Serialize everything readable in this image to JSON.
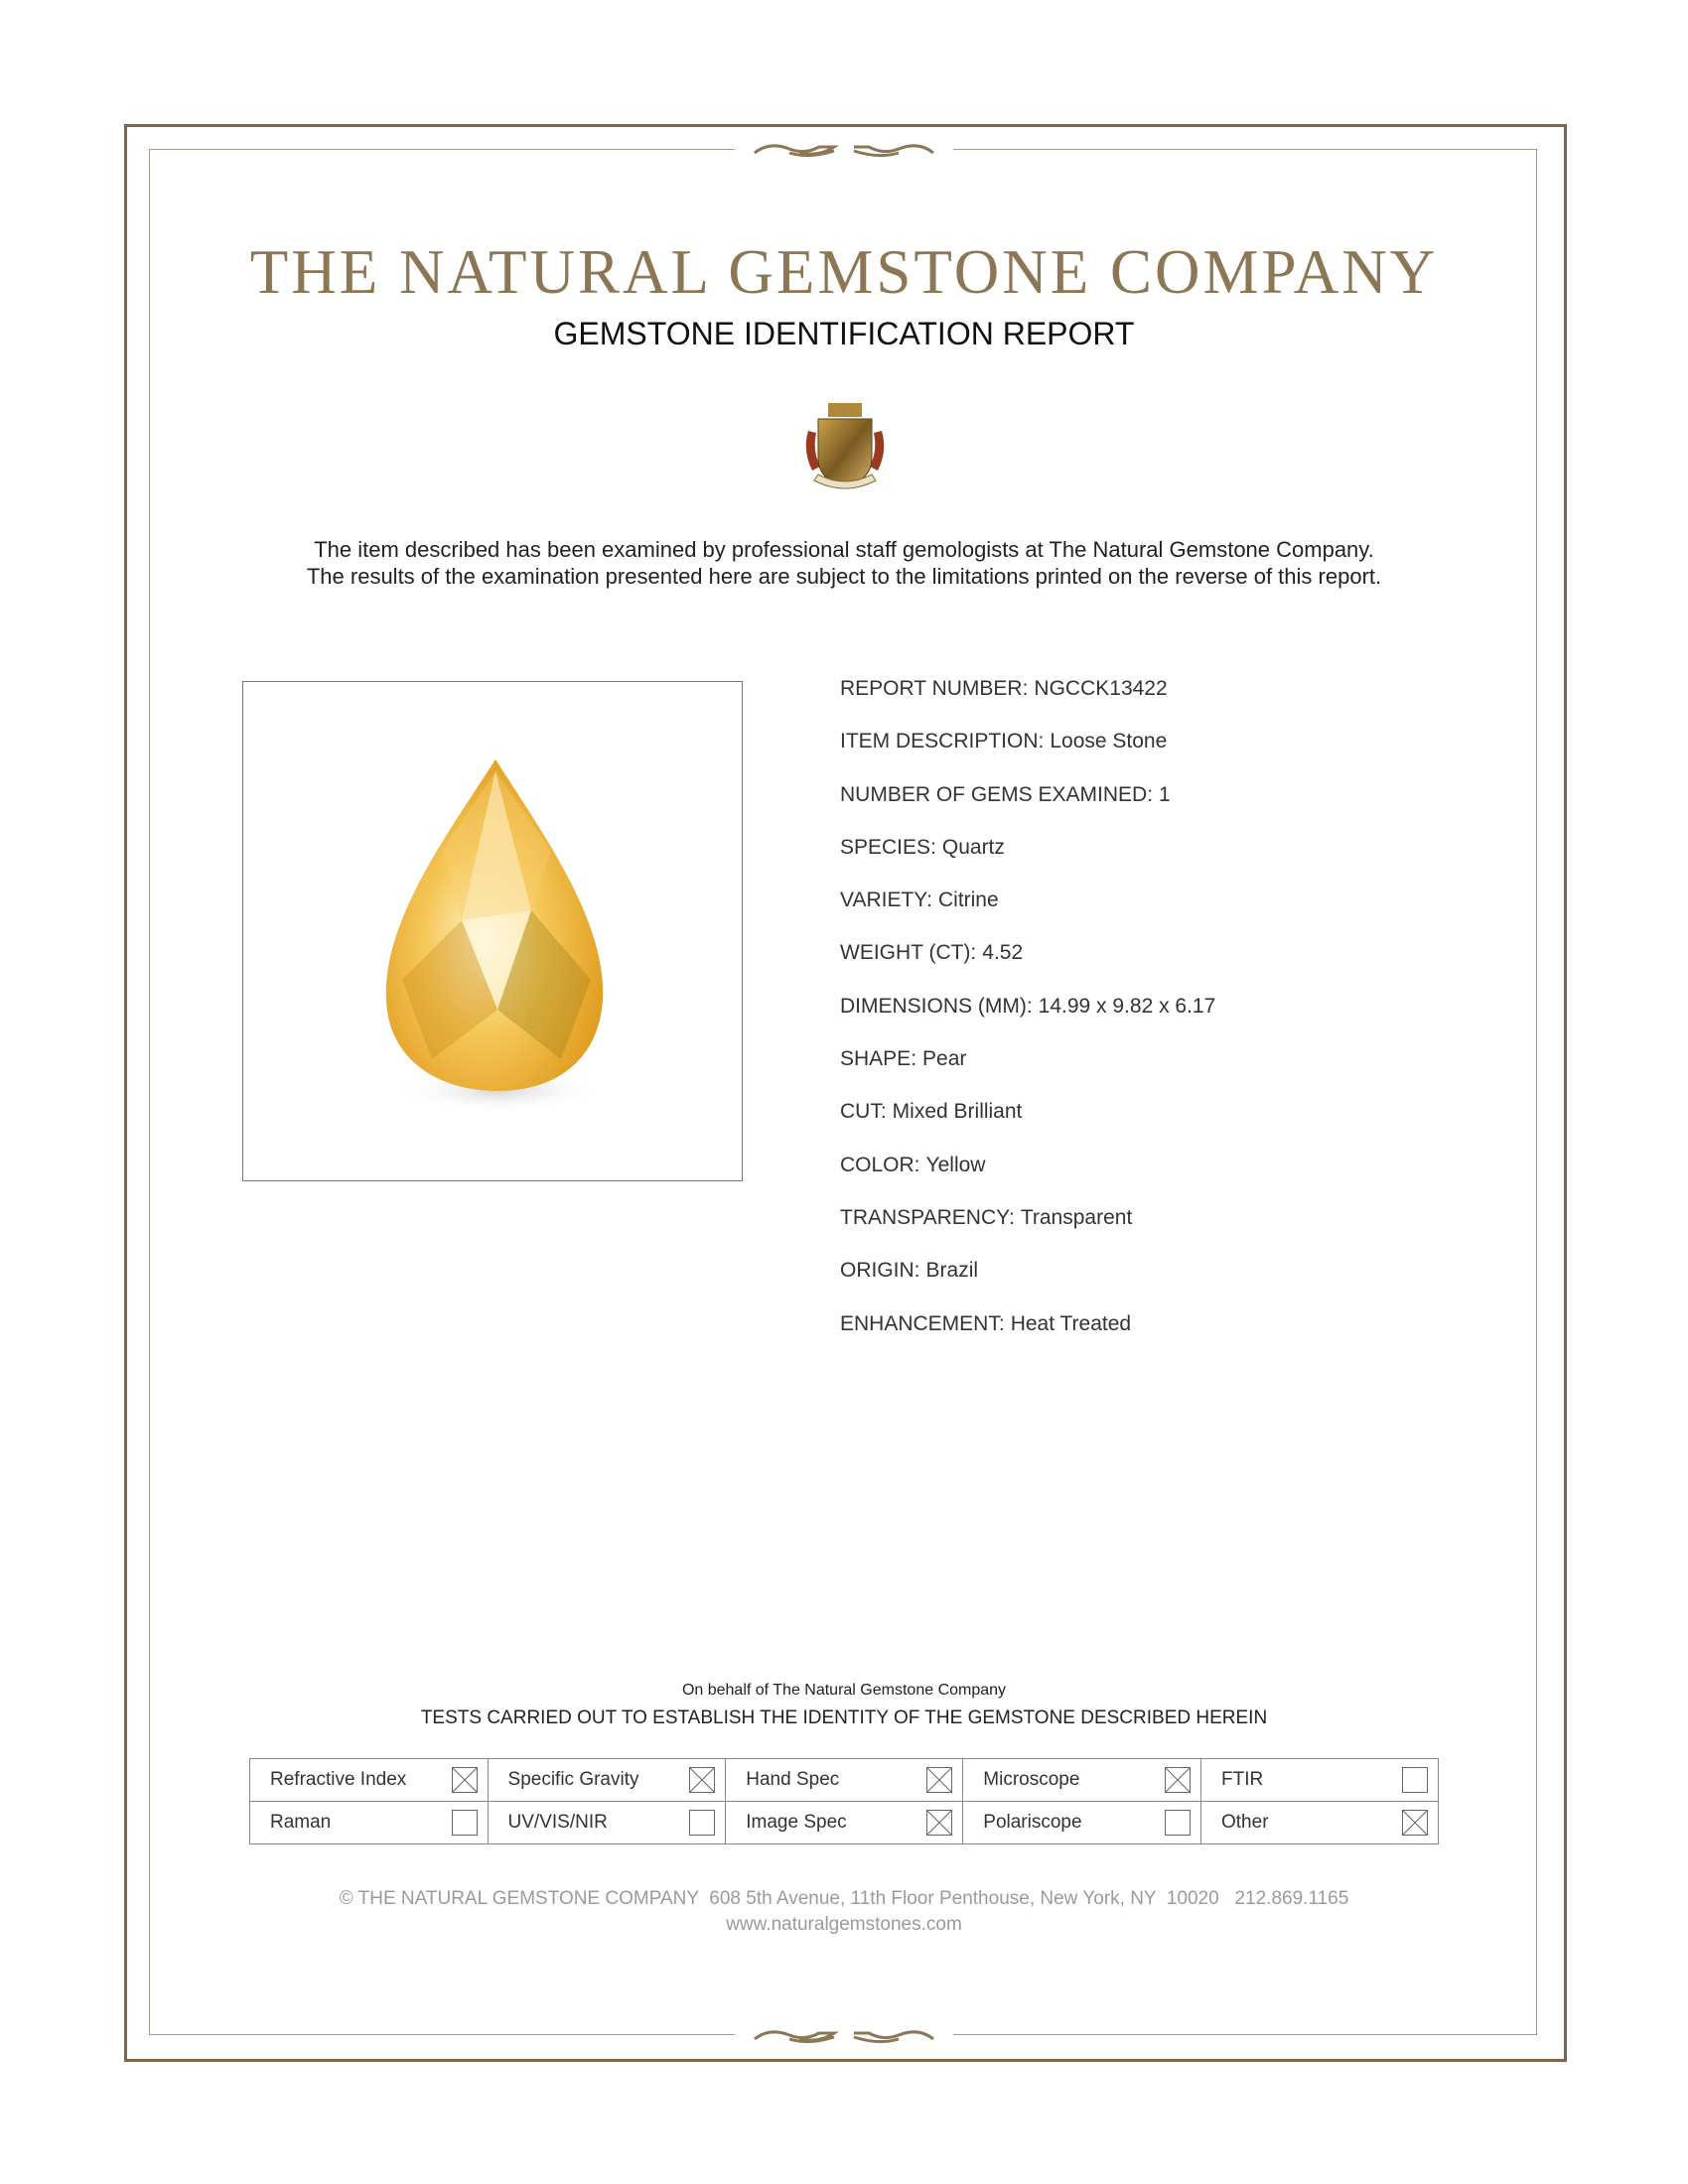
{
  "header": {
    "company": "THE NATURAL GEMSTONE COMPANY",
    "report_title": "GEMSTONE IDENTIFICATION REPORT",
    "crest_icon": "crest-logo"
  },
  "intro": {
    "line1": "The item described has been examined by professional staff gemologists at The Natural Gemstone Company.",
    "line2": "The results of the examination presented here are subject to the limitations printed on the reverse of this report."
  },
  "fields": [
    {
      "label": "REPORT NUMBER:",
      "value": "NGCCK13422"
    },
    {
      "label": "ITEM DESCRIPTION:",
      "value": "Loose Stone"
    },
    {
      "label": "NUMBER OF GEMS EXAMINED:",
      "value": "1"
    },
    {
      "label": "SPECIES:",
      "value": "Quartz"
    },
    {
      "label": "VARIETY:",
      "value": "Citrine"
    },
    {
      "label": "WEIGHT (CT):",
      "value": "4.52"
    },
    {
      "label": "DIMENSIONS (MM):",
      "value": "14.99 x 9.82 x 6.17"
    },
    {
      "label": "SHAPE:",
      "value": "Pear"
    },
    {
      "label": "CUT:",
      "value": "Mixed Brilliant"
    },
    {
      "label": "COLOR:",
      "value": "Yellow"
    },
    {
      "label": "TRANSPARENCY:",
      "value": "Transparent"
    },
    {
      "label": "ORIGIN:",
      "value": "Brazil"
    },
    {
      "label": "ENHANCEMENT:",
      "value": "Heat Treated"
    }
  ],
  "tests": {
    "on_behalf": "On behalf of The Natural Gemstone Company",
    "heading": "TESTS CARRIED OUT TO ESTABLISH THE IDENTITY OF THE GEMSTONE DESCRIBED HEREIN",
    "rows": [
      [
        {
          "label": "Refractive Index",
          "checked": true
        },
        {
          "label": "Specific Gravity",
          "checked": true
        },
        {
          "label": "Hand Spec",
          "checked": true
        },
        {
          "label": "Microscope",
          "checked": true
        },
        {
          "label": "FTIR",
          "checked": false
        }
      ],
      [
        {
          "label": "Raman",
          "checked": false
        },
        {
          "label": "UV/VIS/NIR",
          "checked": false
        },
        {
          "label": "Image Spec",
          "checked": true
        },
        {
          "label": "Polariscope",
          "checked": false
        },
        {
          "label": "Other",
          "checked": true
        }
      ]
    ]
  },
  "footer": {
    "address": "© THE NATURAL GEMSTONE COMPANY  608 5th Avenue, 11th Floor Penthouse, New York, NY  10020   212.869.1165",
    "website": "www.naturalgemstones.com"
  },
  "colors": {
    "border": "#7d6748",
    "title": "#8c7654",
    "gem": "#f2b632"
  }
}
